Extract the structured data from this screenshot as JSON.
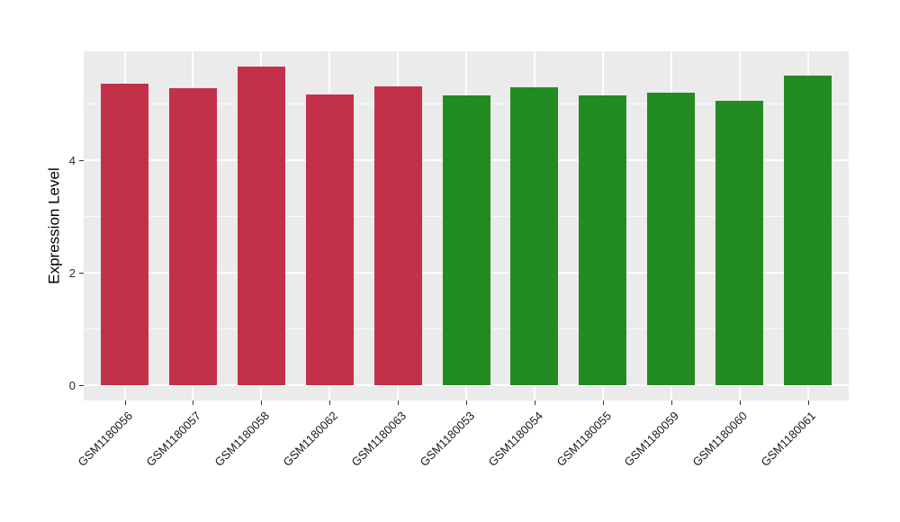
{
  "chart_data": {
    "type": "bar",
    "title": "",
    "xlabel": "",
    "ylabel": "Expression Level",
    "categories": [
      "GSM1180056",
      "GSM1180057",
      "GSM1180058",
      "GSM1180062",
      "GSM1180063",
      "GSM1180053",
      "GSM1180054",
      "GSM1180055",
      "GSM1180059",
      "GSM1180060",
      "GSM1180061"
    ],
    "values": [
      5.35,
      5.27,
      5.66,
      5.16,
      5.31,
      5.15,
      5.28,
      5.14,
      5.19,
      5.04,
      5.5
    ],
    "bar_colors": [
      "#C3304A",
      "#C3304A",
      "#C3304A",
      "#C3304A",
      "#C3304A",
      "#228B22",
      "#228B22",
      "#228B22",
      "#228B22",
      "#228B22",
      "#228B22"
    ],
    "group_colors": {
      "group1": "#C3304A",
      "group2": "#228B22"
    },
    "yticks_major": [
      0,
      2,
      4
    ],
    "yticks_minor": [
      1,
      3,
      5
    ],
    "ylim": [
      0,
      5.93
    ],
    "grid": "on",
    "legend": "none",
    "panel_bg": "#EBEBEB",
    "grid_color": "#FFFFFF",
    "x_label_rotation_deg": 45
  }
}
